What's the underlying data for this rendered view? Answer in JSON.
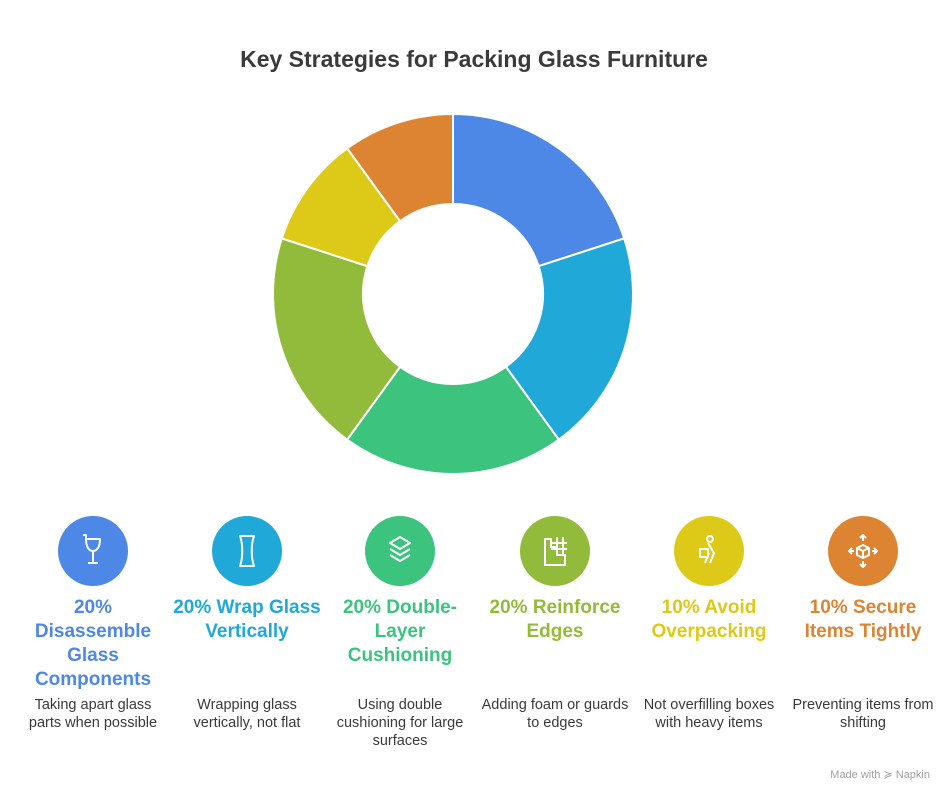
{
  "title": "Key Strategies for Packing Glass Furniture",
  "chart_data": {
    "type": "pie",
    "title": "Key Strategies for Packing Glass Furniture",
    "donut": true,
    "categories": [
      "Disassemble Glass Components",
      "Wrap Glass Vertically",
      "Double-Layer Cushioning",
      "Reinforce Edges",
      "Avoid Overpacking",
      "Secure Items Tightly"
    ],
    "values": [
      20,
      20,
      20,
      20,
      10,
      10
    ],
    "colors": [
      "#4e88e6",
      "#20a9d8",
      "#3cc47f",
      "#93bb3b",
      "#ddc917",
      "#dd8433"
    ]
  },
  "items": [
    {
      "label": "20% Disassemble Glass Components",
      "desc": "Taking apart glass parts when possible",
      "icon": "broken-glass-icon",
      "color": "#4e88e6"
    },
    {
      "label": "20% Wrap Glass Vertically",
      "desc": "Wrapping glass vertically, not flat",
      "icon": "glass-panel-icon",
      "color": "#20a9d8"
    },
    {
      "label": "20% Double-Layer Cushioning",
      "desc": "Using double cushioning for large surfaces",
      "icon": "layers-icon",
      "color": "#3cc47f"
    },
    {
      "label": "20% Reinforce Edges",
      "desc": "Adding foam or guards to edges",
      "icon": "edge-guard-icon",
      "color": "#93bb3b"
    },
    {
      "label": "10% Avoid Overpacking",
      "desc": "Not overfilling boxes with heavy items",
      "icon": "person-carrying-box-icon",
      "color": "#ddc917"
    },
    {
      "label": "10% Secure Items Tightly",
      "desc": "Preventing items from shifting",
      "icon": "box-arrows-icon",
      "color": "#dd8433"
    }
  ],
  "footer": "Made with ≽ Napkin"
}
